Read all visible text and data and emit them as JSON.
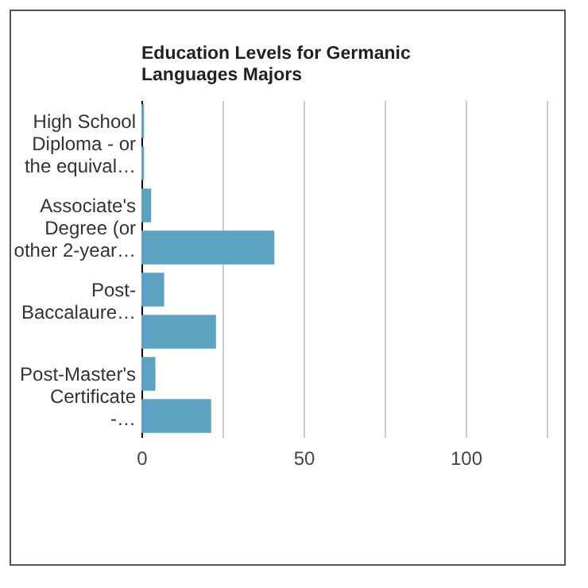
{
  "chart_data": {
    "type": "bar",
    "orientation": "horizontal",
    "title": "Education Levels for Germanic Languages Majors",
    "categories": [
      "High School Diploma - or the equival…",
      null,
      "Associate's Degree (or other 2-year…",
      null,
      "Post-Baccalaure…",
      null,
      "Post-Master's Certificate -…",
      null
    ],
    "values": [
      0.8,
      0.8,
      3,
      41,
      7,
      23,
      4.3,
      21.5
    ],
    "color": "#5ba3c0",
    "xlim": [
      0,
      125
    ],
    "xticks": [
      0,
      {
        "value": 25,
        "label": null
      },
      50,
      {
        "value": 75,
        "label": null
      },
      100,
      {
        "value": 125,
        "label": null
      }
    ],
    "grid": "x"
  }
}
